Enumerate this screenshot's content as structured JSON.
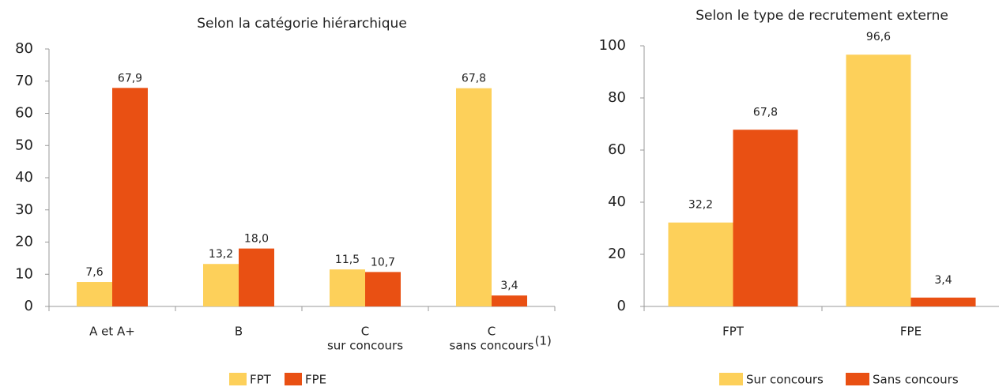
{
  "chart_data": [
    {
      "type": "bar",
      "title": "Selon la catégorie hiérarchique",
      "categories": [
        [
          "A et A+"
        ],
        [
          "B"
        ],
        [
          "C",
          "sur concours"
        ],
        [
          "C",
          "sans concours",
          "(1)"
        ]
      ],
      "series": [
        {
          "name": "FPT",
          "color": "#fdd05a",
          "values": [
            7.6,
            13.2,
            11.5,
            67.8
          ],
          "value_labels": [
            "7,6",
            "13,2",
            "11,5",
            "67,8"
          ]
        },
        {
          "name": "FPE",
          "color": "#e95013",
          "values": [
            67.9,
            18.0,
            10.7,
            3.4
          ],
          "value_labels": [
            "67,9",
            "18,0",
            "10,7",
            "3,4"
          ]
        }
      ],
      "ylim": [
        0,
        80
      ],
      "yticks": [
        0,
        10,
        20,
        30,
        40,
        50,
        60,
        70,
        80
      ],
      "legend": "bottom"
    },
    {
      "type": "bar",
      "title": "Selon le type de recrutement externe",
      "categories": [
        [
          "FPT"
        ],
        [
          "FPE"
        ]
      ],
      "series": [
        {
          "name": "Sur concours",
          "color": "#fdd05a",
          "values": [
            32.2,
            96.6
          ],
          "value_labels": [
            "32,2",
            "96,6"
          ]
        },
        {
          "name": "Sans concours",
          "color": "#e95013",
          "values": [
            67.8,
            3.4
          ],
          "value_labels": [
            "67,8",
            "3,4"
          ]
        }
      ],
      "ylim": [
        0,
        100
      ],
      "yticks": [
        0,
        20,
        40,
        60,
        80,
        100
      ],
      "legend": "bottom"
    }
  ]
}
